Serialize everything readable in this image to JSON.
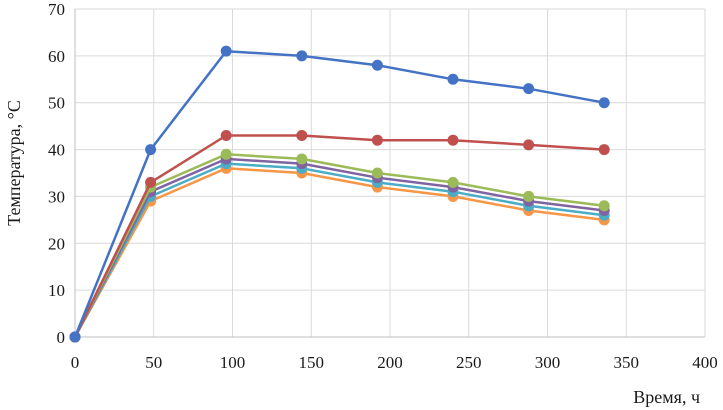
{
  "chart_data": {
    "type": "line",
    "title": "",
    "xlabel": "Время, ч",
    "ylabel": "Температура, °С",
    "xlim": [
      0,
      400
    ],
    "ylim": [
      0,
      70
    ],
    "xticks": [
      0,
      50,
      100,
      150,
      200,
      250,
      300,
      350,
      400
    ],
    "yticks": [
      0,
      10,
      20,
      30,
      40,
      50,
      60,
      70
    ],
    "xtick_labels": [
      "0",
      "50",
      "100",
      "150",
      "200",
      "250",
      "300",
      "350",
      "400"
    ],
    "ytick_labels": [
      "0",
      "10",
      "20",
      "30",
      "40",
      "50",
      "60",
      "70"
    ],
    "grid": "both",
    "legend": "none",
    "x": [
      0,
      48,
      96,
      144,
      192,
      240,
      288,
      336
    ],
    "series": [
      {
        "name": "series-1",
        "color": "#4472C4",
        "values": [
          0,
          40,
          61,
          60,
          58,
          55,
          53,
          50
        ]
      },
      {
        "name": "series-2",
        "color": "#C0504D",
        "values": [
          0,
          33,
          43,
          43,
          42,
          42,
          41,
          40
        ]
      },
      {
        "name": "series-3",
        "color": "#9BBB59",
        "values": [
          0,
          32,
          39,
          38,
          35,
          33,
          30,
          28
        ]
      },
      {
        "name": "series-4",
        "color": "#8064A2",
        "values": [
          0,
          31,
          38,
          37,
          34,
          32,
          29,
          27
        ]
      },
      {
        "name": "series-5",
        "color": "#4BACC6",
        "values": [
          0,
          30,
          37,
          36,
          33,
          31,
          28,
          26
        ]
      },
      {
        "name": "series-6",
        "color": "#F79646",
        "values": [
          0,
          29,
          36,
          35,
          32,
          30,
          27,
          25
        ]
      }
    ]
  }
}
